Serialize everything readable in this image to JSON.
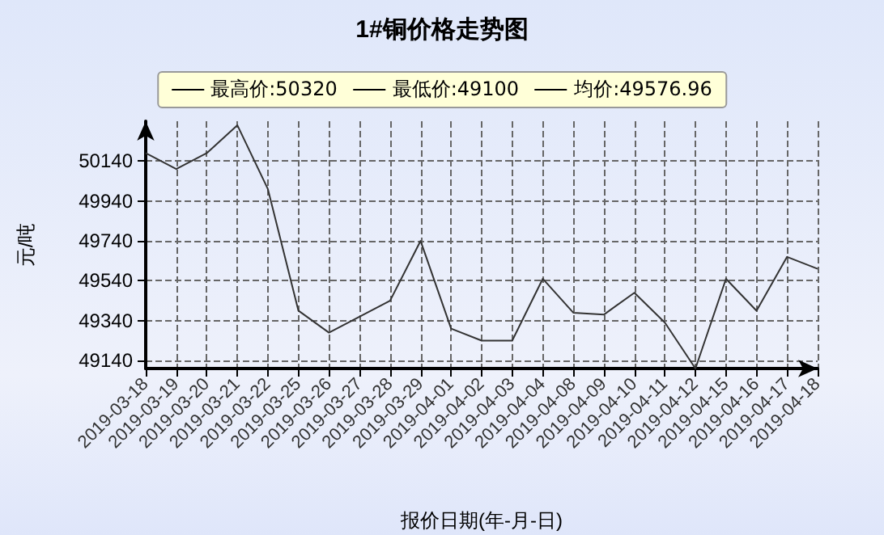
{
  "chart_data": {
    "type": "line",
    "title": "1#铜价格走势图",
    "xlabel": "报价日期(年-月-日)",
    "ylabel": "元/吨",
    "annotations": [
      "最高价:50320",
      "最低价:49100",
      "均价:49576.96"
    ],
    "categories": [
      "2019-03-18",
      "2019-03-19",
      "2019-03-20",
      "2019-03-21",
      "2019-03-22",
      "2019-03-25",
      "2019-03-26",
      "2019-03-27",
      "2019-03-28",
      "2019-03-29",
      "2019-04-01",
      "2019-04-02",
      "2019-04-03",
      "2019-04-04",
      "2019-04-08",
      "2019-04-09",
      "2019-04-10",
      "2019-04-11",
      "2019-04-12",
      "2019-04-15",
      "2019-04-16",
      "2019-04-17",
      "2019-04-18"
    ],
    "series": [
      {
        "color": "#333333",
        "values": [
          50180,
          50100,
          50180,
          50320,
          50000,
          49390,
          49280,
          49360,
          49440,
          49740,
          49300,
          49240,
          49240,
          49550,
          49380,
          49370,
          49480,
          49330,
          49100,
          49550,
          49390,
          49660,
          49600
        ]
      }
    ],
    "ylim": [
      49100,
      50340
    ],
    "yticks": [
      49140,
      49340,
      49540,
      49740,
      49940,
      50140
    ],
    "grid": true,
    "marker": "none",
    "line_style": "solid"
  }
}
